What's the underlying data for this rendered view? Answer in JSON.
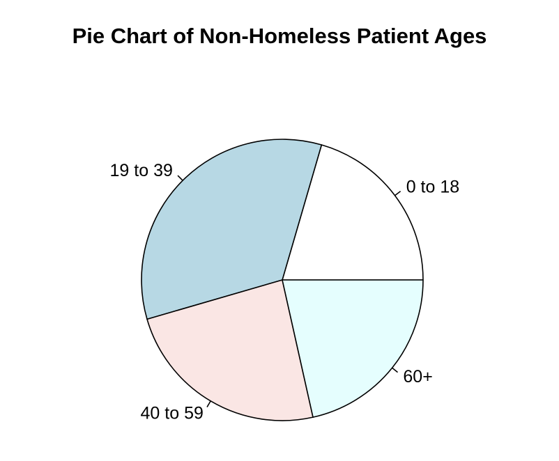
{
  "chart_data": {
    "type": "pie",
    "title": "Pie Chart of Non-Homeless Patient Ages",
    "direction": "counterclockwise",
    "start": "3 o'clock",
    "slices": [
      {
        "label": "0 to 18",
        "value": 20.5,
        "color": "#ffffff"
      },
      {
        "label": "19 to 39",
        "value": 34.0,
        "color": "#b7d8e4"
      },
      {
        "label": "40 to 59",
        "value": 24.0,
        "color": "#fae6e4"
      },
      {
        "label": "60+",
        "value": 21.5,
        "color": "#e5fefe"
      }
    ]
  }
}
